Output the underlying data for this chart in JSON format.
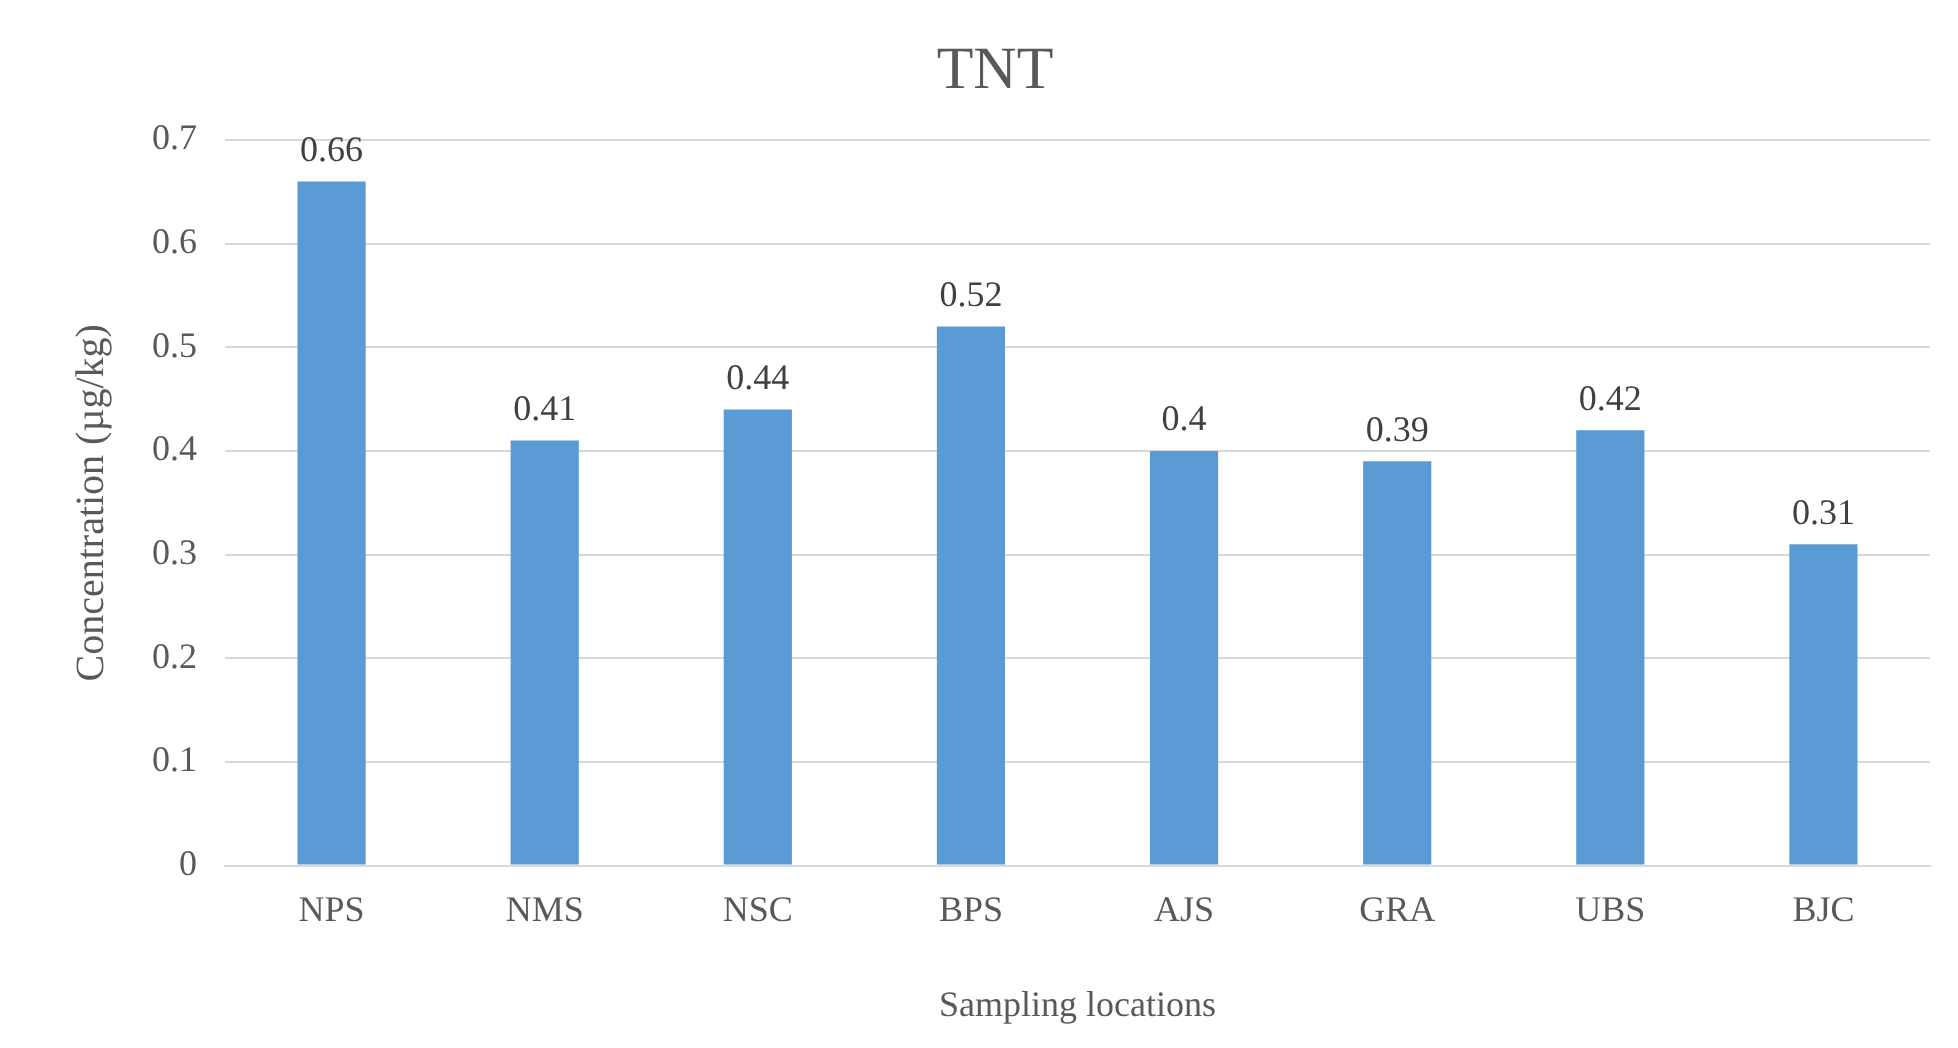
{
  "chart_data": {
    "type": "bar",
    "title": "TNT",
    "xlabel": "Sampling locations",
    "ylabel": "Concentration (µg/kg)",
    "categories": [
      "NPS",
      "NMS",
      "NSC",
      "BPS",
      "AJS",
      "GRA",
      "UBS",
      "BJC"
    ],
    "values": [
      0.66,
      0.41,
      0.44,
      0.52,
      0.4,
      0.39,
      0.42,
      0.31
    ],
    "color": "#5b9bd5",
    "ylim": [
      0,
      0.7
    ],
    "yticks": [
      0,
      0.1,
      0.2,
      0.3,
      0.4,
      0.5,
      0.6,
      0.7
    ],
    "grid": "y",
    "data_labels": true
  }
}
